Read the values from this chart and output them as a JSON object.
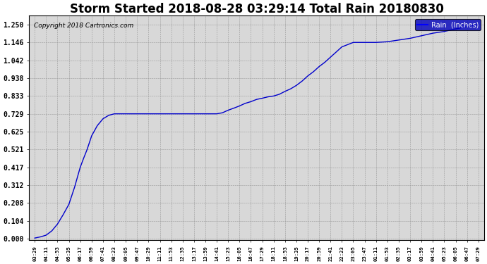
{
  "title": "Storm Started 2018-08-28 03:29:14 Total Rain 20180830",
  "copyright_text": "Copyright 2018 Cartronics.com",
  "legend_label": "Rain  (Inches)",
  "legend_bg": "#0000bb",
  "legend_text_color": "#ffffff",
  "line_color": "#0000cc",
  "bg_color": "#ffffff",
  "plot_bg_color": "#d8d8d8",
  "grid_color": "#999999",
  "title_fontsize": 12,
  "ylabel_values": [
    0.0,
    0.104,
    0.208,
    0.312,
    0.417,
    0.521,
    0.625,
    0.729,
    0.833,
    0.938,
    1.042,
    1.146,
    1.25
  ],
  "x_tick_labels": [
    "03:29",
    "04:11",
    "04:53",
    "05:35",
    "06:17",
    "06:59",
    "07:41",
    "08:23",
    "09:05",
    "09:47",
    "10:29",
    "11:11",
    "11:53",
    "12:35",
    "13:17",
    "13:59",
    "14:41",
    "15:23",
    "16:05",
    "16:47",
    "17:29",
    "18:11",
    "18:53",
    "19:35",
    "20:17",
    "20:59",
    "21:41",
    "22:23",
    "23:05",
    "23:47",
    "01:11",
    "01:53",
    "02:35",
    "03:17",
    "03:59",
    "04:41",
    "05:23",
    "06:05",
    "06:47",
    "07:29"
  ],
  "n_points": 40,
  "ylim": [
    -0.01,
    1.302
  ],
  "curve_x": [
    0,
    0.5,
    1,
    1.5,
    2,
    2.5,
    3,
    3.5,
    4,
    4.3,
    4.6,
    5,
    5.5,
    6,
    6.5,
    7,
    8,
    9,
    10,
    11,
    12,
    13,
    14,
    15,
    16,
    16.5,
    17,
    17.5,
    18,
    18.5,
    19,
    19.5,
    20,
    20.5,
    21,
    21.5,
    22,
    22.5,
    23,
    23.5,
    24,
    24.5,
    25,
    25.5,
    26,
    26.5,
    27,
    28,
    29,
    30,
    31,
    32,
    33,
    34,
    35,
    36,
    37,
    38,
    39
  ],
  "curve_y": [
    0.003,
    0.01,
    0.02,
    0.045,
    0.085,
    0.14,
    0.2,
    0.3,
    0.417,
    0.47,
    0.52,
    0.6,
    0.66,
    0.7,
    0.72,
    0.729,
    0.729,
    0.729,
    0.729,
    0.729,
    0.729,
    0.729,
    0.729,
    0.729,
    0.729,
    0.735,
    0.75,
    0.762,
    0.775,
    0.79,
    0.8,
    0.813,
    0.82,
    0.828,
    0.833,
    0.843,
    0.86,
    0.875,
    0.895,
    0.92,
    0.95,
    0.975,
    1.005,
    1.03,
    1.06,
    1.09,
    1.12,
    1.146,
    1.146,
    1.146,
    1.15,
    1.16,
    1.17,
    1.185,
    1.2,
    1.21,
    1.225,
    1.238,
    1.25
  ]
}
